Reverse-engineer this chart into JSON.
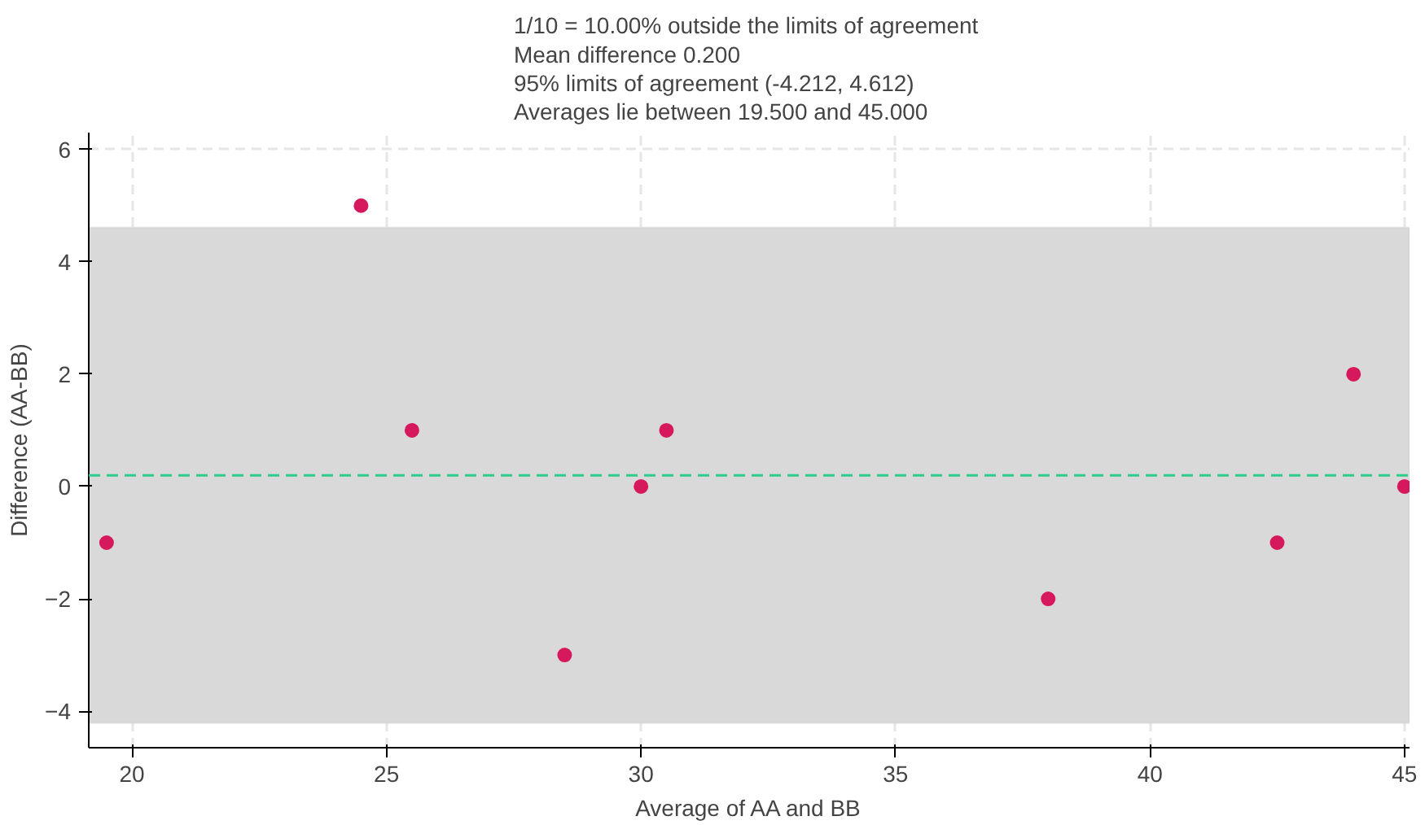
{
  "chart_data": {
    "type": "scatter",
    "title": "1/10 =  10.00% outside the limits of agreement\nMean difference  0.200\n95% limits of agreement (-4.212, 4.612)\nAverages lie between 19.500 and 45.000",
    "xlabel": "Average of AA and BB",
    "ylabel": "Difference (AA-BB)",
    "x": [
      19.5,
      24.5,
      25.5,
      28.5,
      30,
      30.5,
      38,
      42.5,
      44,
      45
    ],
    "series": [
      {
        "color": "#d6185c",
        "values": [
          -1,
          5,
          1,
          -3,
          0,
          1,
          -2,
          -1,
          2,
          0
        ]
      }
    ],
    "xlim": [
      19.15,
      45.1
    ],
    "ylim": [
      -4.65,
      6.3
    ],
    "xticks": [
      20,
      25,
      30,
      35,
      40,
      45
    ],
    "yticks": [
      -4,
      -2,
      0,
      2,
      4,
      6
    ],
    "bands": [
      {
        "axis": "y",
        "from": -4.212,
        "to": 4.612,
        "color": "#d9d9d9"
      }
    ],
    "ref_lines": [
      {
        "axis": "y",
        "value": 0.2,
        "color": "#2ecc8a",
        "line_style": "dashed"
      }
    ],
    "grid": true,
    "marker": "circle"
  }
}
